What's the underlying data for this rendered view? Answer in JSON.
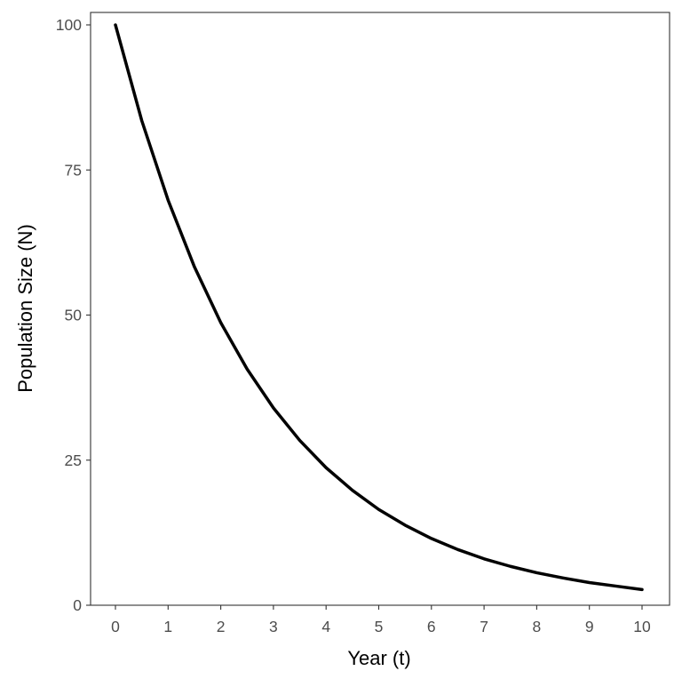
{
  "chart_data": {
    "type": "line",
    "title": "",
    "xlabel": "Year (t)",
    "ylabel": "Population Size (N)",
    "xlim": [
      -0.5,
      10.5
    ],
    "ylim": [
      0,
      102
    ],
    "x_ticks": [
      0,
      1,
      2,
      3,
      4,
      5,
      6,
      7,
      8,
      9,
      10
    ],
    "y_ticks": [
      0,
      25,
      50,
      75,
      100
    ],
    "grid": false,
    "series": [
      {
        "name": "N",
        "color": "#000000",
        "x": [
          0,
          0.5,
          1,
          1.5,
          2,
          2.5,
          3,
          3.5,
          4,
          4.5,
          5,
          5.5,
          6,
          6.5,
          7,
          7.5,
          8,
          8.5,
          9,
          9.5,
          10
        ],
        "y": [
          100,
          83.5,
          69.8,
          58.3,
          48.7,
          40.7,
          34.0,
          28.4,
          23.7,
          19.8,
          16.5,
          13.8,
          11.5,
          9.6,
          8.0,
          6.7,
          5.6,
          4.7,
          3.9,
          3.3,
          2.7
        ]
      }
    ]
  }
}
